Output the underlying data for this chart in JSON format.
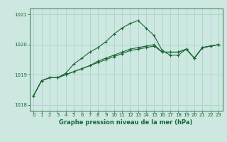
{
  "title": "Graphe pression niveau de la mer (hPa)",
  "bg_color": "#cce8e0",
  "grid_color": "#aacccc",
  "line_color": "#1a6633",
  "ylim": [
    1017.8,
    1021.2
  ],
  "xlim": [
    -0.5,
    23.5
  ],
  "yticks": [
    1018,
    1019,
    1020,
    1021
  ],
  "xticks": [
    0,
    1,
    2,
    3,
    4,
    5,
    6,
    7,
    8,
    9,
    10,
    11,
    12,
    13,
    14,
    15,
    16,
    17,
    18,
    19,
    20,
    21,
    22,
    23
  ],
  "series1": [
    1018.3,
    1018.8,
    1018.9,
    1018.9,
    1019.05,
    1019.35,
    1019.55,
    1019.75,
    1019.9,
    1020.1,
    1020.35,
    1020.55,
    1020.7,
    1020.8,
    1020.55,
    1020.3,
    1019.8,
    1019.65,
    1019.65,
    1019.85,
    1019.55,
    1019.9,
    1019.95,
    1020.0
  ],
  "series2": [
    1018.3,
    1018.8,
    1018.9,
    1018.9,
    1019.0,
    1019.1,
    1019.2,
    1019.3,
    1019.45,
    1019.55,
    1019.65,
    1019.75,
    1019.85,
    1019.9,
    1019.95,
    1020.0,
    1019.75,
    1019.75,
    1019.75,
    1019.85,
    1019.55,
    1019.9,
    1019.95,
    1020.0
  ],
  "series3": [
    1018.3,
    1018.8,
    1018.9,
    1018.9,
    1019.0,
    1019.1,
    1019.2,
    1019.3,
    1019.4,
    1019.5,
    1019.6,
    1019.7,
    1019.8,
    1019.85,
    1019.9,
    1019.95,
    1019.75,
    1019.75,
    1019.75,
    1019.85,
    1019.55,
    1019.9,
    1019.95,
    1020.0
  ]
}
